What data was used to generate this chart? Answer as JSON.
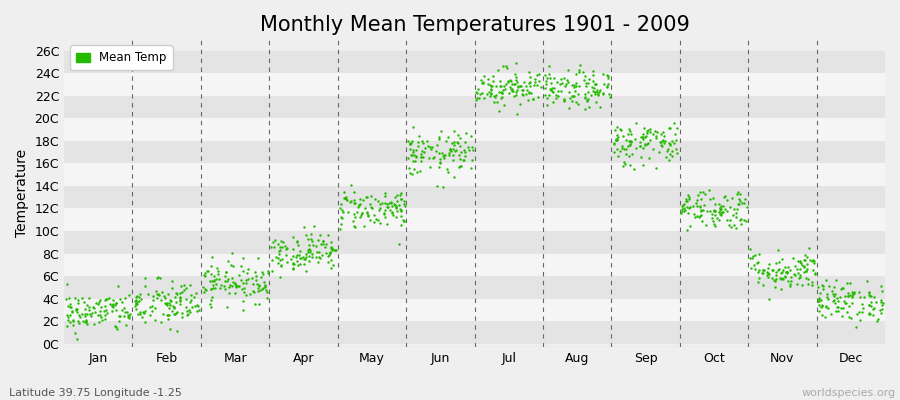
{
  "title": "Monthly Mean Temperatures 1901 - 2009",
  "ylabel": "Temperature",
  "xlabel_bottom": "Latitude 39.75 Longitude -1.25",
  "watermark": "worldspecies.org",
  "ytick_labels": [
    "0C",
    "2C",
    "4C",
    "6C",
    "8C",
    "10C",
    "12C",
    "14C",
    "16C",
    "18C",
    "20C",
    "22C",
    "24C",
    "26C"
  ],
  "ytick_values": [
    0,
    2,
    4,
    6,
    8,
    10,
    12,
    14,
    16,
    18,
    20,
    22,
    24,
    26
  ],
  "ylim": [
    -0.3,
    27
  ],
  "month_names": [
    "Jan",
    "Feb",
    "Mar",
    "Apr",
    "May",
    "Jun",
    "Jul",
    "Aug",
    "Sep",
    "Oct",
    "Nov",
    "Dec"
  ],
  "dot_color": "#22bb00",
  "background_color": "#efefef",
  "band_light": "#f5f5f5",
  "band_dark": "#e4e4e4",
  "legend_label": "Mean Temp",
  "title_fontsize": 15,
  "axis_fontsize": 9,
  "num_years": 109,
  "mean_temps": [
    2.8,
    3.5,
    5.5,
    8.2,
    12.0,
    16.8,
    22.8,
    22.5,
    17.8,
    12.0,
    6.5,
    3.8
  ],
  "std_temps": [
    0.9,
    1.1,
    0.9,
    0.85,
    0.9,
    1.0,
    0.85,
    0.85,
    1.0,
    0.9,
    0.9,
    0.9
  ],
  "seed": 42,
  "dot_size": 3
}
